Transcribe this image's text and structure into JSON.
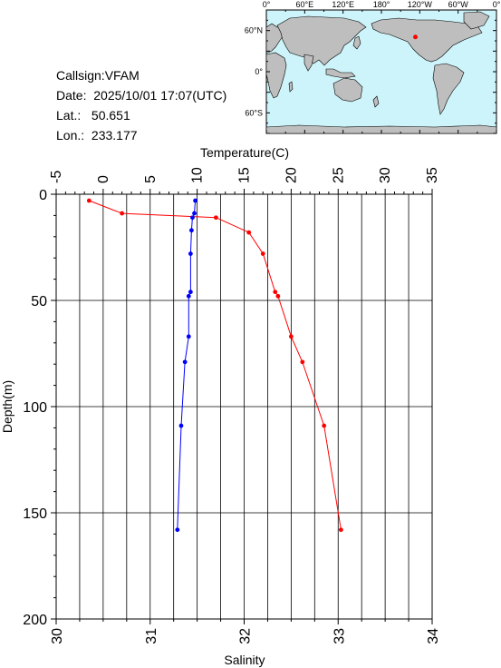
{
  "header": {
    "callsign": "Callsign:VFAM",
    "date": "Date:  2025/10/01 17:07(UTC)",
    "lat": "Lat.:   50.651",
    "lon": "Lon.:  233.177"
  },
  "map": {
    "lon_labels": [
      "0°",
      "60°E",
      "120°E",
      "180°",
      "120°W",
      "60°W",
      "0°"
    ],
    "lat_labels": [
      "60°N",
      "0°",
      "60°S"
    ],
    "colors": {
      "ocean": "#cdf4fa",
      "land": "#bebebe",
      "marker": "#ff0000"
    },
    "station": {
      "lon": 233.177,
      "lat": 50.651
    }
  },
  "chart_data": {
    "type": "line",
    "title": "",
    "ylabel": "Depth(m)",
    "xlabel_top": "Temperature(C)",
    "xlabel_bottom": "Salinity",
    "ylim": [
      200,
      0
    ],
    "temperature_axis": {
      "lim": [
        -5,
        35
      ],
      "ticks": [
        -5,
        0,
        5,
        10,
        15,
        20,
        25,
        30,
        35
      ]
    },
    "salinity_axis": {
      "lim": [
        30,
        34
      ],
      "ticks": [
        30,
        31,
        32,
        33,
        34
      ]
    },
    "depth_ticks": [
      0,
      50,
      100,
      150,
      200
    ],
    "grid": true,
    "series": [
      {
        "color": "#ff0000",
        "axis": "temperature",
        "points": [
          {
            "x": -1.5,
            "y": 3
          },
          {
            "x": 2.0,
            "y": 9
          },
          {
            "x": 12.0,
            "y": 11
          },
          {
            "x": 15.5,
            "y": 18
          },
          {
            "x": 17.0,
            "y": 28
          },
          {
            "x": 18.3,
            "y": 46
          },
          {
            "x": 18.6,
            "y": 48
          },
          {
            "x": 20.0,
            "y": 67
          },
          {
            "x": 21.2,
            "y": 79
          },
          {
            "x": 23.5,
            "y": 109
          },
          {
            "x": 25.3,
            "y": 158
          }
        ]
      },
      {
        "color": "#0000ff",
        "axis": "salinity",
        "points": [
          {
            "x": 31.48,
            "y": 3
          },
          {
            "x": 31.47,
            "y": 9
          },
          {
            "x": 31.45,
            "y": 11
          },
          {
            "x": 31.44,
            "y": 17
          },
          {
            "x": 31.43,
            "y": 28
          },
          {
            "x": 31.43,
            "y": 46
          },
          {
            "x": 31.41,
            "y": 48
          },
          {
            "x": 31.41,
            "y": 67
          },
          {
            "x": 31.37,
            "y": 79
          },
          {
            "x": 31.33,
            "y": 109
          },
          {
            "x": 31.29,
            "y": 158
          }
        ]
      }
    ]
  }
}
